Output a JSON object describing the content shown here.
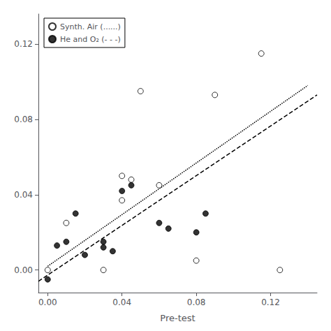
{
  "chart_data": {
    "type": "scatter",
    "xlabel": "Pre-test",
    "xlim": [
      -0.005,
      0.145
    ],
    "ylim": [
      -0.012,
      0.136
    ],
    "xticks": [
      {
        "value": 0.0,
        "label": "0.00"
      },
      {
        "value": 0.04,
        "label": "0.04"
      },
      {
        "value": 0.08,
        "label": "0.08"
      },
      {
        "value": 0.12,
        "label": "0.12"
      }
    ],
    "yticks": [
      {
        "value": 0.0,
        "label": "0.00"
      },
      {
        "value": 0.04,
        "label": "0.04"
      },
      {
        "value": 0.08,
        "label": "0.08"
      },
      {
        "value": 0.12,
        "label": "0.12"
      }
    ],
    "grid": false,
    "legend": "upper left",
    "series": [
      {
        "name": "Synth. Air (......)",
        "type": "scatter",
        "marker": "circle_open",
        "color": "#000000",
        "x": [
          0.0,
          0.01,
          0.03,
          0.04,
          0.04,
          0.045,
          0.05,
          0.06,
          0.08,
          0.09,
          0.115,
          0.125
        ],
        "values": [
          0.0,
          0.025,
          0.0,
          0.037,
          0.05,
          0.048,
          0.095,
          0.045,
          0.005,
          0.093,
          0.115,
          0.0
        ]
      },
      {
        "name": "He and O₂ (- - -)",
        "type": "scatter",
        "marker": "circle",
        "color": "#000000",
        "x": [
          0.0,
          0.005,
          0.01,
          0.015,
          0.02,
          0.03,
          0.03,
          0.035,
          0.04,
          0.045,
          0.06,
          0.065,
          0.08,
          0.085
        ],
        "values": [
          -0.005,
          0.013,
          0.015,
          0.03,
          0.008,
          0.015,
          0.012,
          0.01,
          0.042,
          0.045,
          0.025,
          0.022,
          0.02,
          0.03
        ]
      },
      {
        "type": "line",
        "line_style": "dotted",
        "color": "#000000",
        "x": [
          0.0,
          0.14
        ],
        "values": [
          0.002,
          0.098
        ]
      },
      {
        "type": "line",
        "line_style": "dashed",
        "color": "#000000",
        "x": [
          -0.005,
          0.145
        ],
        "values": [
          -0.006,
          0.093
        ]
      }
    ]
  }
}
